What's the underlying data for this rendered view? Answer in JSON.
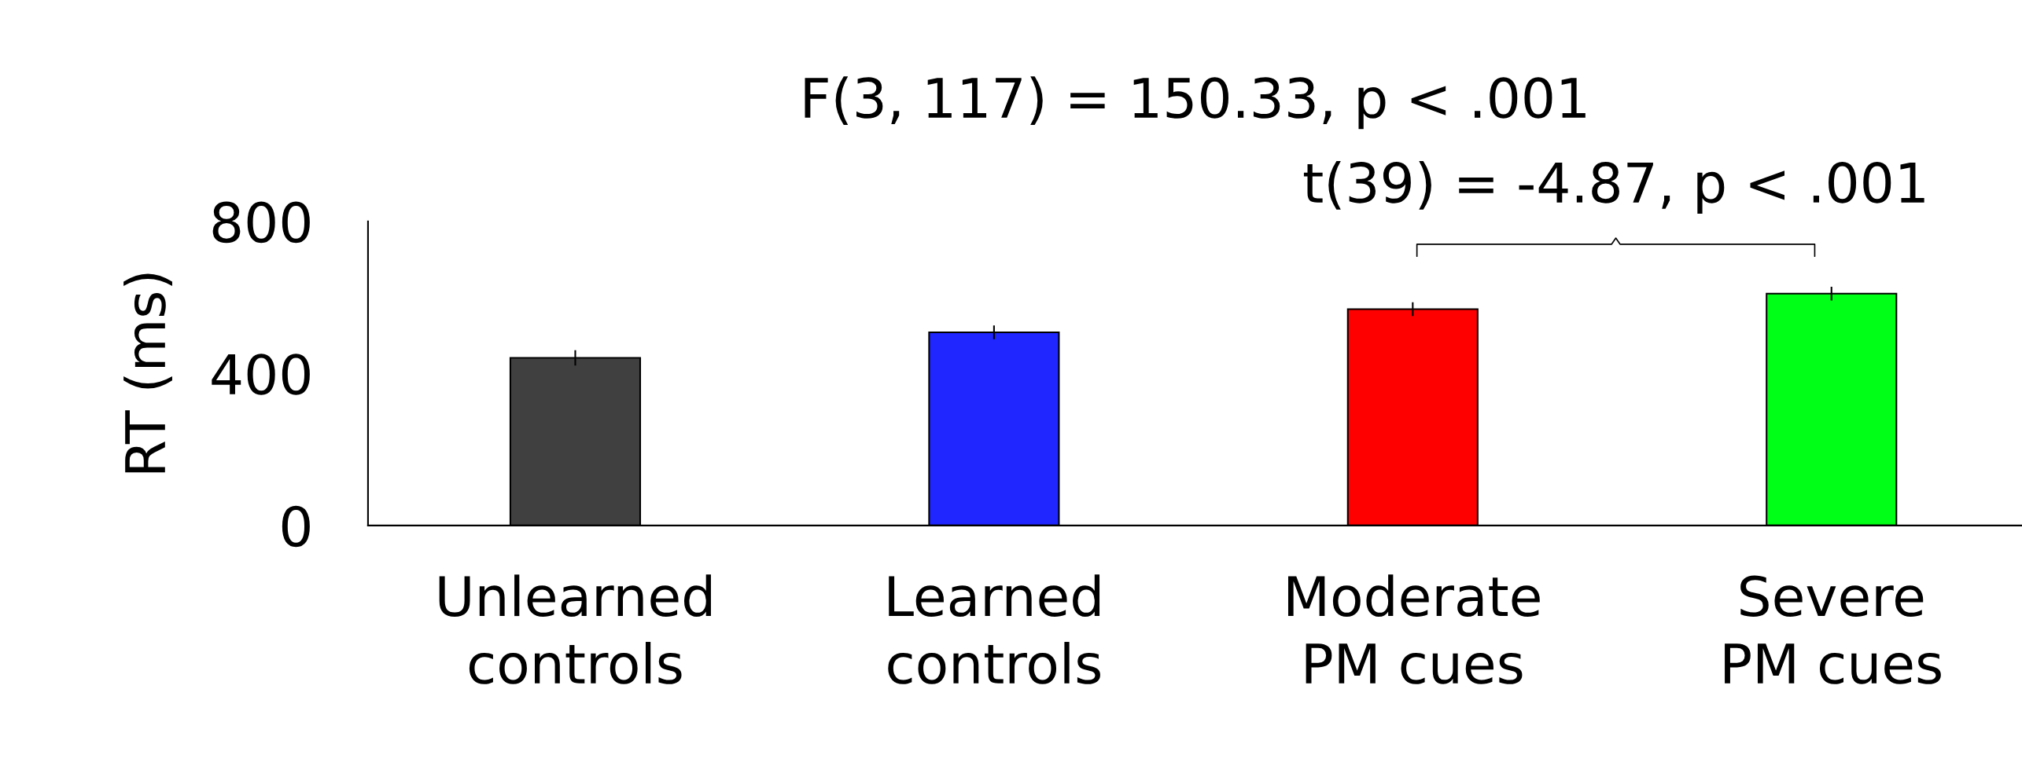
{
  "chart_data": {
    "type": "bar",
    "title": "F(3, 117) = 150.33, p < .001",
    "ylabel": "RT (ms)",
    "categories": [
      "Unlearned\ncontrols",
      "Learned\ncontrols",
      "Moderate\nPM cues",
      "Severe\nPM cues"
    ],
    "values": [
      441,
      508,
      569,
      610
    ],
    "errors": [
      20,
      18,
      18,
      18
    ],
    "colors": [
      "#404040",
      "#1f26ff",
      "#ff0000",
      "#00ff16"
    ],
    "ylim": [
      0,
      800
    ],
    "yticks": [
      0,
      400,
      800
    ],
    "grid": false,
    "legend": false,
    "annotations": [
      "t(39) = -4.87, p < .001"
    ]
  }
}
